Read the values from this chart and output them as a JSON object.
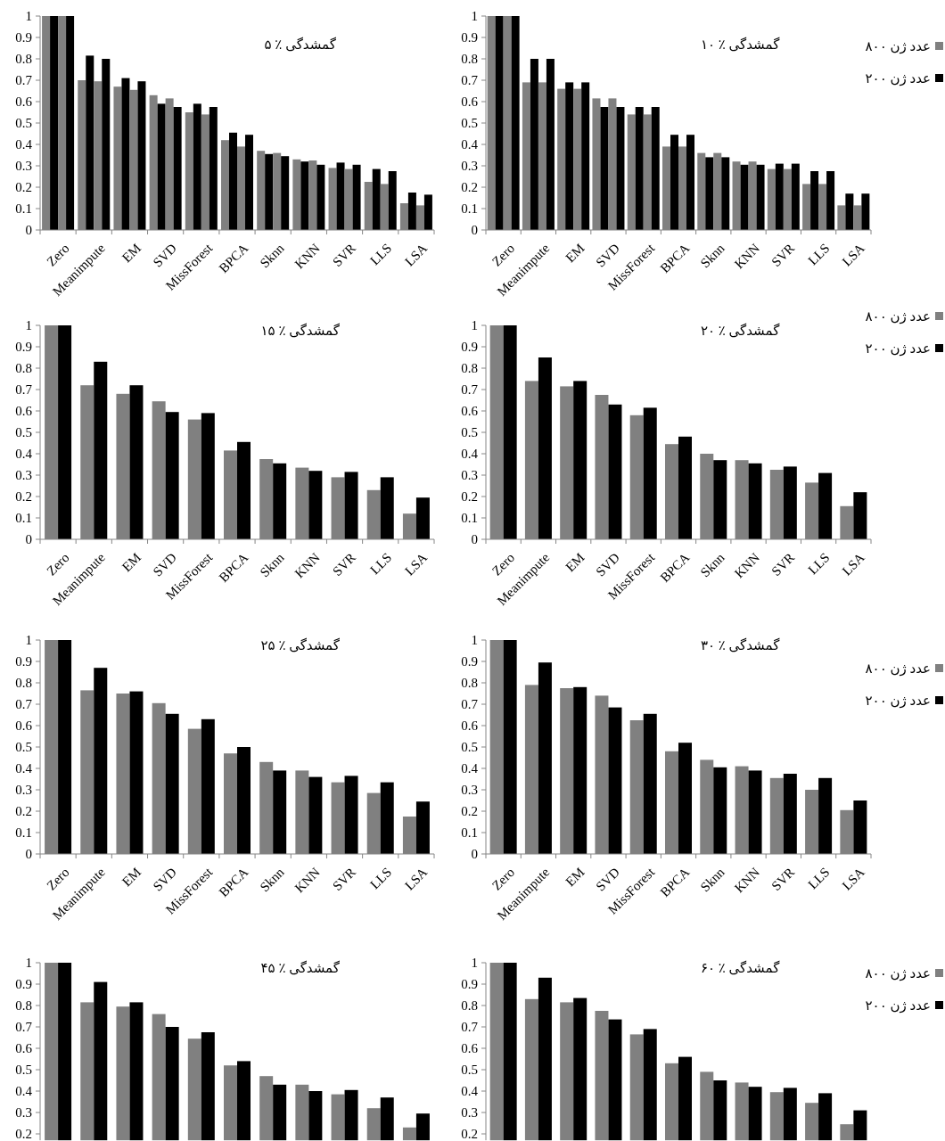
{
  "chart_data": [
    {
      "type": "bar",
      "title": "گمشدگی ٪ ۵",
      "categories": [
        "Zero",
        "Meanimpute",
        "EM",
        "SVD",
        "MissForest",
        "BPCA",
        "Sknn",
        "KNN",
        "SVR",
        "LLS",
        "LSA"
      ],
      "ylim": [
        0,
        1
      ],
      "yticks": [
        {
          "value": 0,
          "label": "0"
        },
        {
          "value": 0.1,
          "label": "0.1"
        },
        {
          "value": 0.2,
          "label": "0.2"
        },
        {
          "value": 0.3,
          "label": "0.3"
        },
        {
          "value": 0.4,
          "label": "0.4"
        },
        {
          "value": 0.5,
          "label": "0.5"
        },
        {
          "value": 0.6,
          "label": "0.6"
        },
        {
          "value": 0.7,
          "label": "0.7"
        },
        {
          "value": 0.8,
          "label": "0.8"
        },
        {
          "value": 0.9,
          "label": "0.9"
        },
        {
          "value": 1,
          "label": "1"
        }
      ],
      "legend": false,
      "series": [
        {
          "color": "#808080",
          "values": [
            1,
            0.7,
            0.67,
            0.63,
            0.55,
            0.42,
            0.37,
            0.33,
            0.29,
            0.225,
            0.125
          ]
        },
        {
          "color": "#000000",
          "values": [
            1,
            0.815,
            0.71,
            0.59,
            0.59,
            0.455,
            0.355,
            0.32,
            0.315,
            0.285,
            0.175
          ]
        },
        {
          "color": "#808080",
          "values": [
            1,
            0.695,
            0.655,
            0.615,
            0.54,
            0.39,
            0.36,
            0.325,
            0.285,
            0.215,
            0.115
          ]
        },
        {
          "color": "#000000",
          "values": [
            1,
            0.8,
            0.695,
            0.575,
            0.575,
            0.445,
            0.345,
            0.305,
            0.305,
            0.275,
            0.165
          ]
        }
      ]
    },
    {
      "type": "bar",
      "title": "گمشدگی ٪ ۱۰",
      "categories": [
        "Zero",
        "Meanimpute",
        "EM",
        "SVD",
        "MissForest",
        "BPCA",
        "Sknn",
        "KNN",
        "SVR",
        "LLS",
        "LSA"
      ],
      "ylim": [
        0,
        1
      ],
      "yticks": [
        {
          "value": 0,
          "label": "0"
        },
        {
          "value": 0.1,
          "label": "0.1"
        },
        {
          "value": 0.2,
          "label": "0.2"
        },
        {
          "value": 0.3,
          "label": "0.3"
        },
        {
          "value": 0.4,
          "label": "0.4"
        },
        {
          "value": 0.5,
          "label": "0.5"
        },
        {
          "value": 0.6,
          "label": "0.6"
        },
        {
          "value": 0.7,
          "label": "0.7"
        },
        {
          "value": 0.8,
          "label": "0.8"
        },
        {
          "value": 0.9,
          "label": "0.9"
        },
        {
          "value": 1,
          "label": "1"
        }
      ],
      "legend": "right",
      "series": [
        {
          "name": "۸۰۰ عدد ژن",
          "color": "#808080",
          "values": [
            1,
            0.69,
            0.66,
            0.615,
            0.54,
            0.39,
            0.36,
            0.32,
            0.285,
            0.215,
            0.115
          ]
        },
        {
          "name": "۲۰۰ عدد ژن",
          "color": "#000000",
          "values": [
            1,
            0.8,
            0.69,
            0.575,
            0.575,
            0.445,
            0.34,
            0.305,
            0.31,
            0.275,
            0.17
          ]
        },
        {
          "color": "#808080",
          "values": [
            1,
            0.69,
            0.66,
            0.615,
            0.54,
            0.39,
            0.36,
            0.32,
            0.285,
            0.215,
            0.115
          ]
        },
        {
          "color": "#000000",
          "values": [
            1,
            0.8,
            0.69,
            0.575,
            0.575,
            0.445,
            0.34,
            0.305,
            0.31,
            0.275,
            0.17
          ]
        }
      ]
    },
    {
      "type": "bar",
      "title": "گمشدگی ٪ ۱۵",
      "categories": [
        "Zero",
        "Meanimpute",
        "EM",
        "SVD",
        "MissForest",
        "BPCA",
        "Sknn",
        "KNN",
        "SVR",
        "LLS",
        "LSA"
      ],
      "ylim": [
        0,
        1
      ],
      "yticks": [
        {
          "value": 0,
          "label": "0"
        },
        {
          "value": 0.1,
          "label": "0.1"
        },
        {
          "value": 0.2,
          "label": "0.2"
        },
        {
          "value": 0.3,
          "label": "0.3"
        },
        {
          "value": 0.4,
          "label": "0.4"
        },
        {
          "value": 0.5,
          "label": "0.5"
        },
        {
          "value": 0.6,
          "label": "0.6"
        },
        {
          "value": 0.7,
          "label": "0.7"
        },
        {
          "value": 0.8,
          "label": "0.8"
        },
        {
          "value": 0.9,
          "label": "0.9"
        },
        {
          "value": 1,
          "label": "1"
        }
      ],
      "legend": false,
      "series": [
        {
          "color": "#808080",
          "values": [
            1,
            0.72,
            0.68,
            0.645,
            0.56,
            0.415,
            0.375,
            0.335,
            0.29,
            0.23,
            0.12
          ]
        },
        {
          "color": "#000000",
          "values": [
            1,
            0.83,
            0.72,
            0.595,
            0.59,
            0.455,
            0.355,
            0.32,
            0.315,
            0.29,
            0.195
          ]
        }
      ]
    },
    {
      "type": "bar",
      "title": "گمشدگی ٪ ۲۰",
      "categories": [
        "Zero",
        "Meanimpute",
        "EM",
        "SVD",
        "MissForest",
        "BPCA",
        "Sknn",
        "KNN",
        "SVR",
        "LLS",
        "LSA"
      ],
      "ylim": [
        0,
        1
      ],
      "yticks": [
        {
          "value": 0,
          "label": "0"
        },
        {
          "value": 0.1,
          "label": "0.1"
        },
        {
          "value": 0.2,
          "label": "0.2"
        },
        {
          "value": 0.3,
          "label": "0.3"
        },
        {
          "value": 0.4,
          "label": "0.4"
        },
        {
          "value": 0.5,
          "label": "0.5"
        },
        {
          "value": 0.6,
          "label": "0.6"
        },
        {
          "value": 0.7,
          "label": "0.7"
        },
        {
          "value": 0.8,
          "label": "0.8"
        },
        {
          "value": 0.9,
          "label": "0.9"
        },
        {
          "value": 1,
          "label": "1"
        }
      ],
      "legend": "right",
      "series": [
        {
          "name": "۸۰۰ عدد ژن",
          "color": "#808080",
          "values": [
            1,
            0.74,
            0.715,
            0.675,
            0.58,
            0.445,
            0.4,
            0.37,
            0.325,
            0.265,
            0.155
          ]
        },
        {
          "name": "۲۰۰ عدد ژن",
          "color": "#000000",
          "values": [
            1,
            0.85,
            0.74,
            0.63,
            0.615,
            0.48,
            0.37,
            0.355,
            0.34,
            0.31,
            0.22
          ]
        }
      ]
    },
    {
      "type": "bar",
      "title": "گمشدگی ٪ ۲۵",
      "categories": [
        "Zero",
        "Meanimpute",
        "EM",
        "SVD",
        "MissForest",
        "BPCA",
        "Sknn",
        "KNN",
        "SVR",
        "LLS",
        "LSA"
      ],
      "ylim": [
        0,
        1
      ],
      "yticks": [
        {
          "value": 0,
          "label": "0"
        },
        {
          "value": 0.1,
          "label": "0.1"
        },
        {
          "value": 0.2,
          "label": "0.2"
        },
        {
          "value": 0.3,
          "label": "0.3"
        },
        {
          "value": 0.4,
          "label": "0.4"
        },
        {
          "value": 0.5,
          "label": "0.5"
        },
        {
          "value": 0.6,
          "label": "0.6"
        },
        {
          "value": 0.7,
          "label": "0.7"
        },
        {
          "value": 0.8,
          "label": "0.8"
        },
        {
          "value": 0.9,
          "label": "0.9"
        },
        {
          "value": 1,
          "label": "1"
        }
      ],
      "legend": false,
      "series": [
        {
          "color": "#808080",
          "values": [
            1,
            0.765,
            0.75,
            0.705,
            0.585,
            0.47,
            0.43,
            0.39,
            0.335,
            0.285,
            0.175
          ]
        },
        {
          "color": "#000000",
          "values": [
            1,
            0.87,
            0.76,
            0.655,
            0.63,
            0.5,
            0.39,
            0.36,
            0.365,
            0.335,
            0.245
          ]
        }
      ]
    },
    {
      "type": "bar",
      "title": "گمشدگی ٪ ۳۰",
      "categories": [
        "Zero",
        "Meanimpute",
        "EM",
        "SVD",
        "MissForest",
        "BPCA",
        "Sknn",
        "KNN",
        "SVR",
        "LLS",
        "LSA"
      ],
      "ylim": [
        0,
        1
      ],
      "yticks": [
        {
          "value": 0,
          "label": "0"
        },
        {
          "value": 0.1,
          "label": "0.1"
        },
        {
          "value": 0.2,
          "label": "0.2"
        },
        {
          "value": 0.3,
          "label": "0.3"
        },
        {
          "value": 0.4,
          "label": "0.4"
        },
        {
          "value": 0.5,
          "label": "0.5"
        },
        {
          "value": 0.6,
          "label": "0.6"
        },
        {
          "value": 0.7,
          "label": "0.7"
        },
        {
          "value": 0.8,
          "label": "0.8"
        },
        {
          "value": 0.9,
          "label": "0.9"
        },
        {
          "value": 1,
          "label": "1"
        }
      ],
      "legend": "right",
      "series": [
        {
          "name": "۸۰۰ عدد ژن",
          "color": "#808080",
          "values": [
            1,
            0.79,
            0.775,
            0.74,
            0.625,
            0.48,
            0.44,
            0.41,
            0.355,
            0.3,
            0.205
          ]
        },
        {
          "name": "۲۰۰ عدد ژن",
          "color": "#000000",
          "values": [
            1,
            0.895,
            0.78,
            0.685,
            0.655,
            0.52,
            0.405,
            0.39,
            0.375,
            0.355,
            0.25
          ]
        }
      ]
    },
    {
      "type": "bar",
      "title": "گمشدگی ٪ ۴۵",
      "categories": [
        null,
        null,
        null,
        null,
        null,
        null,
        null,
        null,
        null,
        null,
        null
      ],
      "ylim": [
        0.17,
        1
      ],
      "yticks": [
        {
          "value": 0.2,
          "label": "0.2"
        },
        {
          "value": 0.3,
          "label": "0.3"
        },
        {
          "value": 0.4,
          "label": "0.4"
        },
        {
          "value": 0.5,
          "label": "0.5"
        },
        {
          "value": 0.6,
          "label": "0.6"
        },
        {
          "value": 0.7,
          "label": "0.7"
        },
        {
          "value": 0.8,
          "label": "0.8"
        },
        {
          "value": 0.9,
          "label": "0.9"
        },
        {
          "value": 1,
          "label": "1"
        }
      ],
      "tick_labels": "y",
      "legend": false,
      "series": [
        {
          "color": "#808080",
          "values": [
            1,
            0.815,
            0.795,
            0.76,
            0.645,
            0.52,
            0.47,
            0.43,
            0.385,
            0.32,
            0.23
          ]
        },
        {
          "color": "#000000",
          "values": [
            1,
            0.91,
            0.815,
            0.7,
            0.675,
            0.54,
            0.43,
            0.4,
            0.405,
            0.37,
            0.295
          ]
        }
      ]
    },
    {
      "type": "bar",
      "title": "گمشدگی ٪ ۶۰",
      "categories": [
        null,
        null,
        null,
        null,
        null,
        null,
        null,
        null,
        null,
        null,
        null
      ],
      "ylim": [
        0.17,
        1
      ],
      "yticks": [
        {
          "value": 0.2,
          "label": "0.2"
        },
        {
          "value": 0.3,
          "label": "0.3"
        },
        {
          "value": 0.4,
          "label": "0.4"
        },
        {
          "value": 0.5,
          "label": "0.5"
        },
        {
          "value": 0.6,
          "label": "0.6"
        },
        {
          "value": 0.7,
          "label": "0.7"
        },
        {
          "value": 0.8,
          "label": "0.8"
        },
        {
          "value": 0.9,
          "label": "0.9"
        },
        {
          "value": 1,
          "label": "1"
        }
      ],
      "tick_labels": "y",
      "legend": "right",
      "series": [
        {
          "name": "۸۰۰ عدد ژن",
          "color": "#808080",
          "values": [
            1,
            0.83,
            0.815,
            0.775,
            0.665,
            0.53,
            0.49,
            0.44,
            0.395,
            0.345,
            0.245
          ]
        },
        {
          "name": "۲۰۰ عدد ژن",
          "color": "#000000",
          "values": [
            1,
            0.93,
            0.835,
            0.735,
            0.69,
            0.56,
            0.45,
            0.42,
            0.415,
            0.39,
            0.31
          ]
        }
      ]
    }
  ]
}
